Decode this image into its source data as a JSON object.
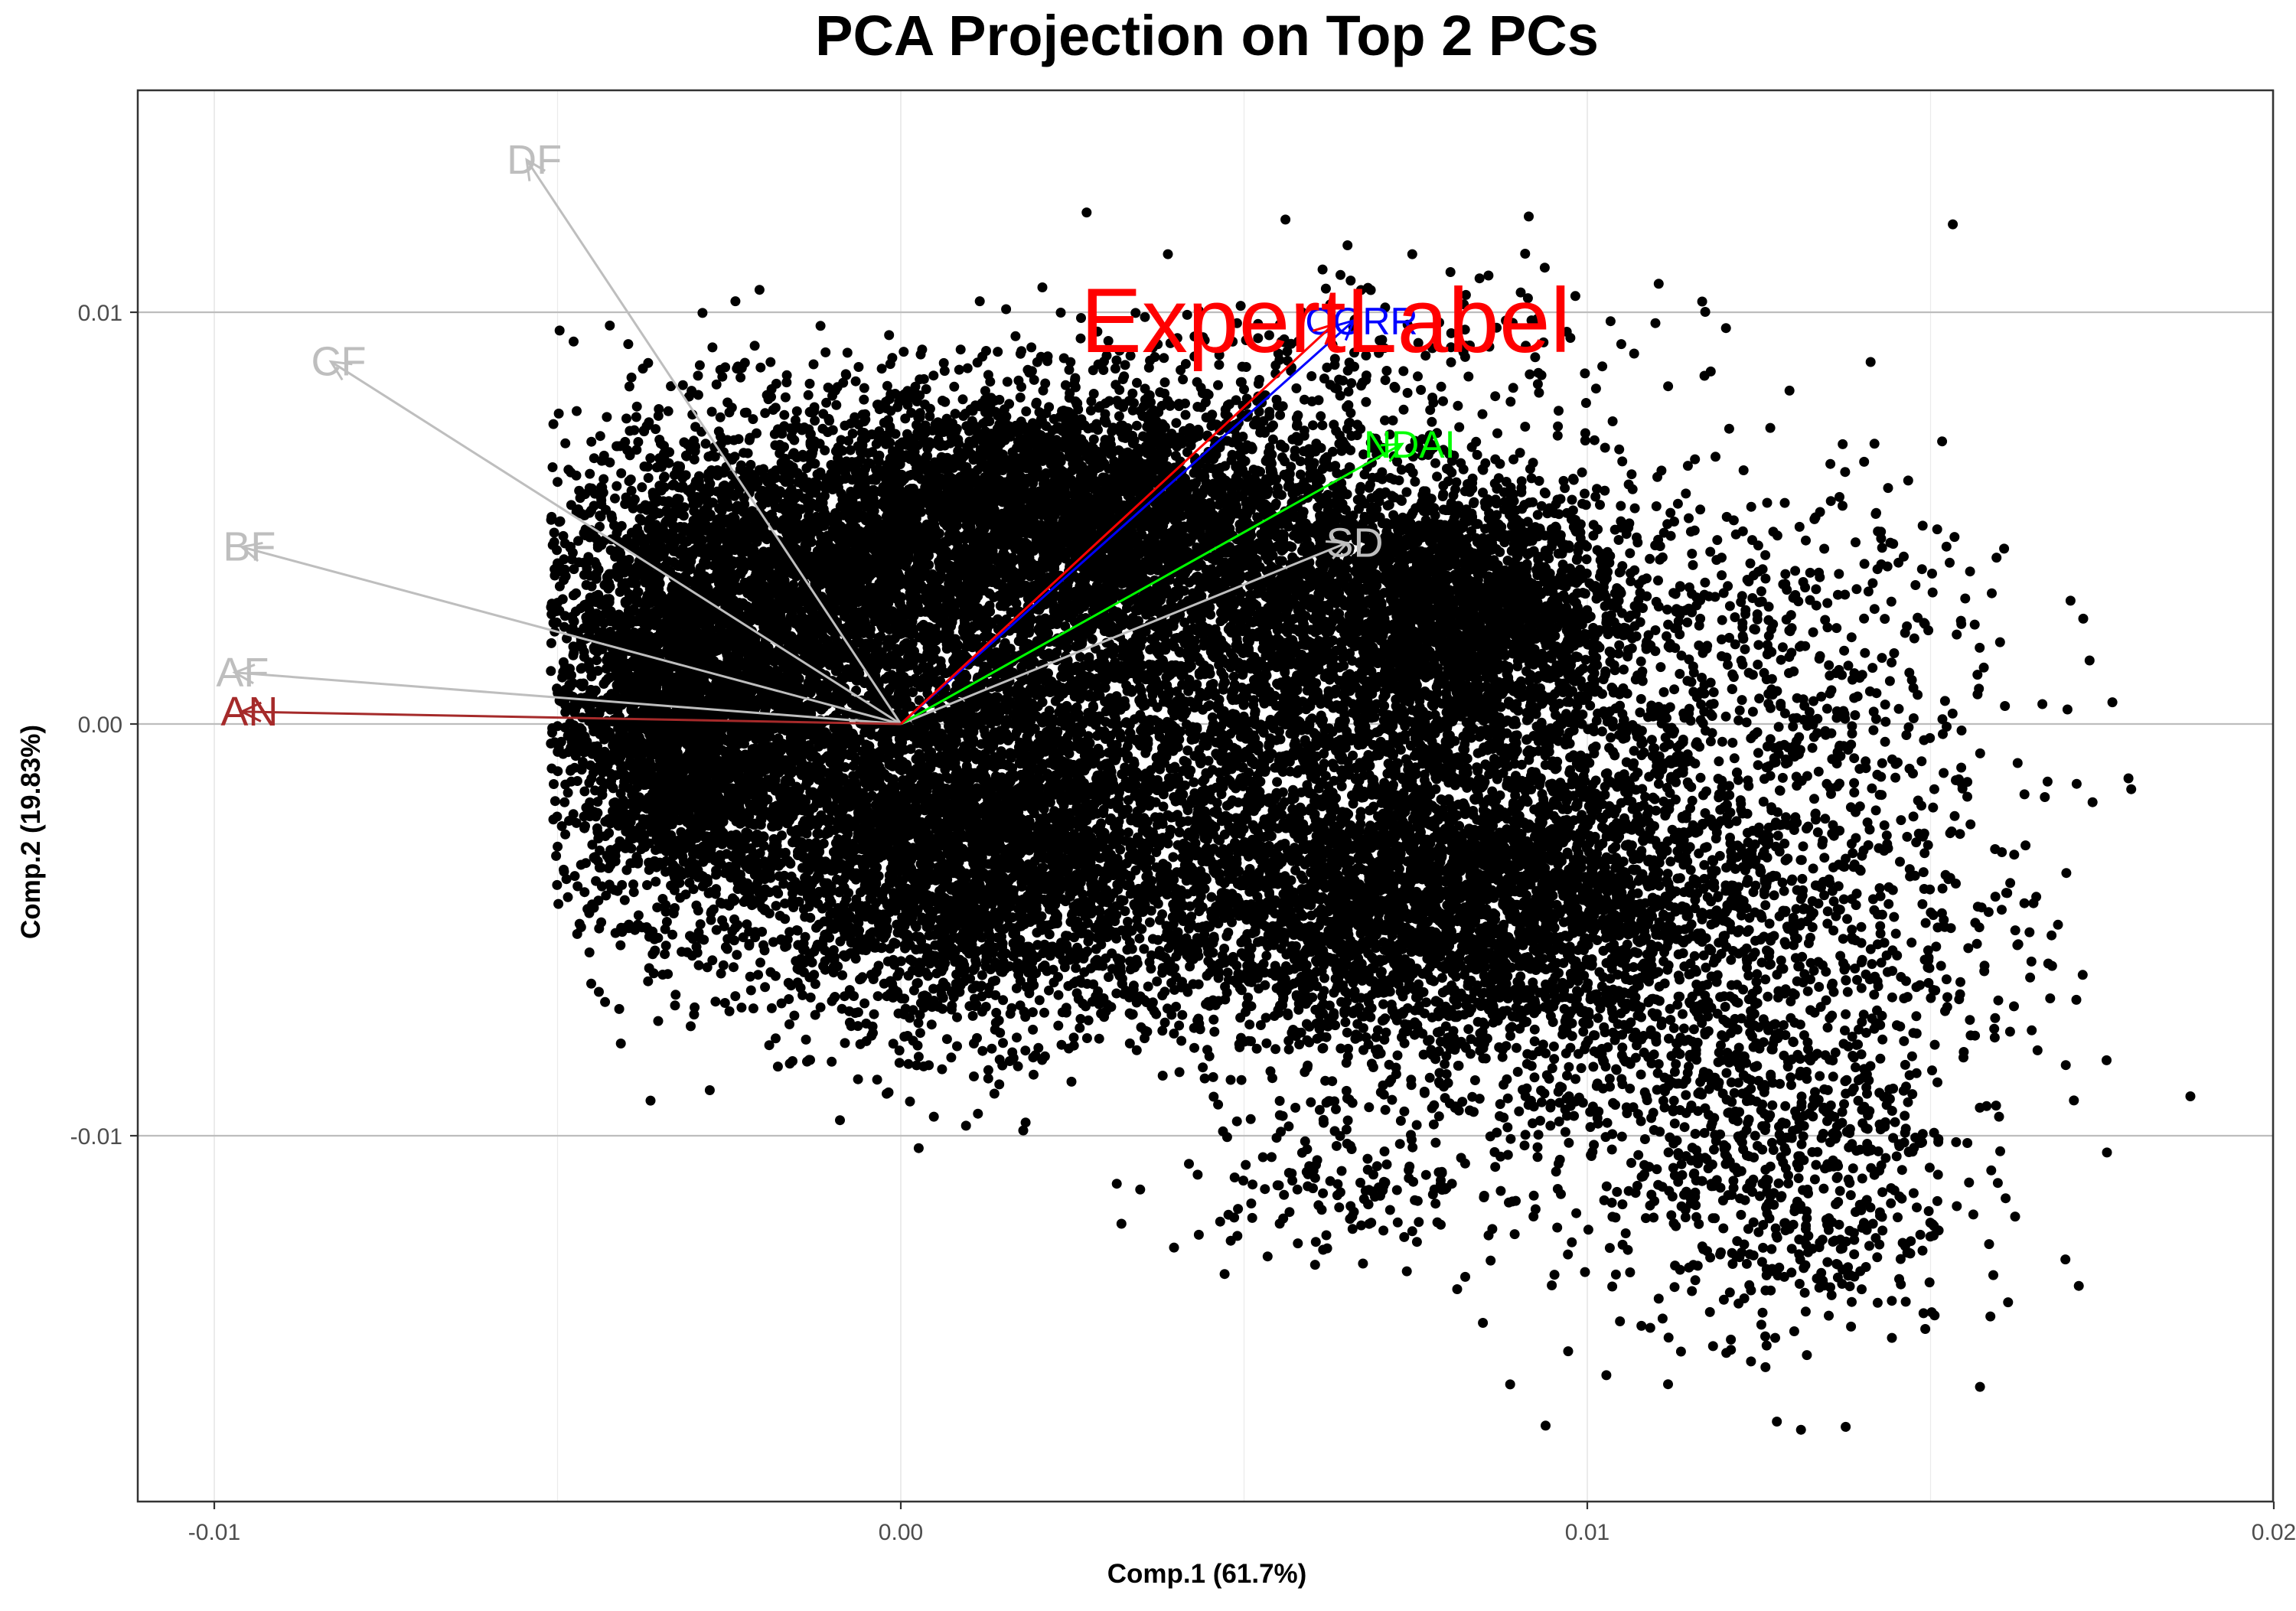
{
  "chart_data": {
    "type": "scatter",
    "title": "PCA Projection on Top 2 PCs",
    "xlabel": "Comp.1 (61.7%)",
    "ylabel": "Comp.2 (19.83%)",
    "xlim": [
      -0.0101,
      0.02
    ],
    "ylim": [
      -0.0188,
      0.0155
    ],
    "x_ticks": [
      {
        "value": -0.01,
        "label": "-0.01"
      },
      {
        "value": 0.0,
        "label": "0.00"
      },
      {
        "value": 0.01,
        "label": "0.01"
      },
      {
        "value": 0.02,
        "label": "0.02"
      }
    ],
    "y_ticks": [
      {
        "value": 0.01,
        "label": "0.01"
      },
      {
        "value": 0.0,
        "label": "0.00"
      },
      {
        "value": -0.01,
        "label": "-0.01"
      }
    ],
    "x_minor_gridlines": [
      -0.005,
      0.005,
      0.015
    ],
    "y_minor_gridlines": [],
    "grid": true,
    "point_color": "#000000",
    "loadings": [
      {
        "name": "DF",
        "x": -0.00545,
        "y": 0.0137,
        "color": "#bebebe"
      },
      {
        "name": "CF",
        "x": -0.0083,
        "y": 0.0088,
        "color": "#bebebe"
      },
      {
        "name": "BF",
        "x": -0.0096,
        "y": 0.0043,
        "color": "#bebebe"
      },
      {
        "name": "AF",
        "x": -0.0097,
        "y": 0.00125,
        "color": "#bebebe"
      },
      {
        "name": "AN",
        "x": -0.0096,
        "y": 0.0003,
        "color": "#a52a2a"
      },
      {
        "name": "SD",
        "x": 0.0065,
        "y": 0.0044,
        "color": "#bebebe"
      },
      {
        "name": "NDAI",
        "x": 0.0073,
        "y": 0.0068,
        "color": "#00ff00"
      },
      {
        "name": "CORR",
        "x": 0.0066,
        "y": 0.0098,
        "color": "#0000ff"
      },
      {
        "name": "ExpertLabel",
        "x": 0.0063,
        "y": 0.0097,
        "color": "#ff0000"
      }
    ],
    "point_count": 45000,
    "point_distribution": "dense cloud spanning roughly Comp.1 from -0.0051 to 0.0186 and Comp.2 from -0.0173 to 0.0127"
  }
}
